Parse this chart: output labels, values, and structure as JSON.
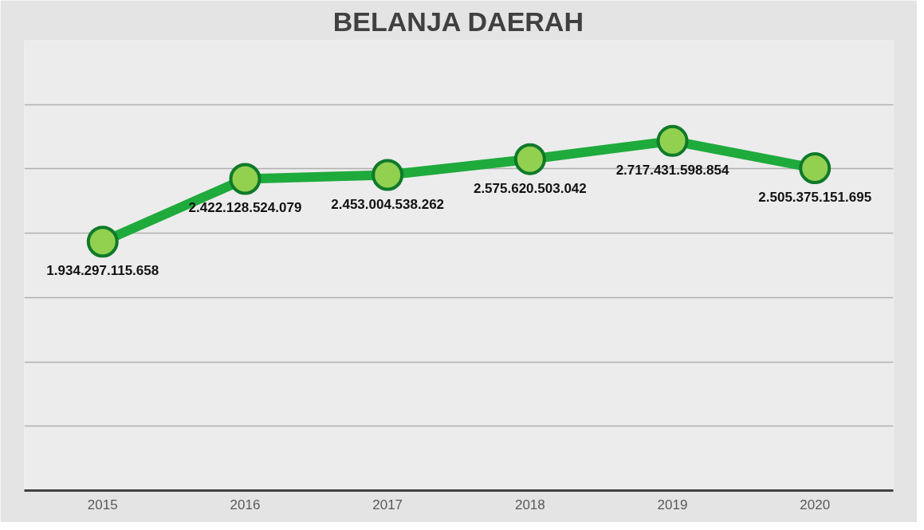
{
  "chart_data": {
    "type": "line",
    "title": "BELANJA DAERAH",
    "categories": [
      "2015",
      "2016",
      "2017",
      "2018",
      "2019",
      "2020"
    ],
    "series": [
      {
        "color": "#1faa3c",
        "values": [
          1934297115658,
          2422128524079,
          2453004538262,
          2575620503042,
          2717431598854,
          2505375151695
        ],
        "value_labels": [
          "1.934.297.115.658",
          "2.422.128.524.079",
          "2.453.004.538.262",
          "2.575.620.503.042",
          "2.717.431.598.854",
          "2.505.375.151.695"
        ]
      }
    ],
    "ylim": [
      0,
      3500000000000
    ],
    "yticks": [
      {
        "value": 0,
        "label": null
      },
      {
        "value": 500000000000,
        "label": null
      },
      {
        "value": 1000000000000,
        "label": null
      },
      {
        "value": 1500000000000,
        "label": null
      },
      {
        "value": 2000000000000,
        "label": null
      },
      {
        "value": 2500000000000,
        "label": null
      },
      {
        "value": 3000000000000,
        "label": null
      }
    ],
    "grid": "y",
    "marker": "circle",
    "line_style": "solid",
    "tick_labels": "x"
  }
}
